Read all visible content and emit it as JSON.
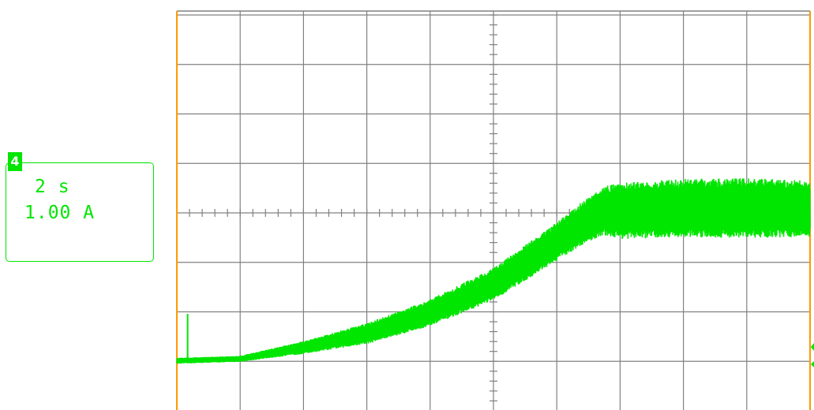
{
  "channel": {
    "number": "4",
    "timebase": "2 s",
    "scale": "1.00 A"
  },
  "colors": {
    "trace": "#00e600",
    "grid": "#808080",
    "frame": "#ff9900",
    "background": "#ffffff"
  },
  "chart_data": {
    "type": "line",
    "title": "",
    "xlabel": "",
    "ylabel": "",
    "grid": true,
    "x_unit": "s",
    "y_unit": "A",
    "x_per_div": 2,
    "y_per_div": 1,
    "xlim": [
      -10,
      10
    ],
    "ylim": [
      -4,
      4
    ],
    "series": [
      {
        "type": "envelope",
        "points": [
          {
            "x": -10.0,
            "low": -3.04,
            "high": -2.94
          },
          {
            "x": -8.0,
            "low": -3.0,
            "high": -2.9
          },
          {
            "x": -6.0,
            "low": -2.84,
            "high": -2.6
          },
          {
            "x": -4.0,
            "low": -2.64,
            "high": -2.24
          },
          {
            "x": -2.0,
            "low": -2.28,
            "high": -1.76
          },
          {
            "x": 0.0,
            "low": -1.76,
            "high": -1.12
          },
          {
            "x": 2.0,
            "low": -0.96,
            "high": -0.2
          },
          {
            "x": 3.0,
            "low": -0.56,
            "high": 0.32
          },
          {
            "x": 3.6,
            "low": -0.45,
            "high": 0.55
          },
          {
            "x": 4.0,
            "low": -0.52,
            "high": 0.6
          },
          {
            "x": 6.0,
            "low": -0.48,
            "high": 0.68
          },
          {
            "x": 8.0,
            "low": -0.5,
            "high": 0.7
          },
          {
            "x": 10.0,
            "low": -0.48,
            "high": 0.64
          }
        ]
      }
    ],
    "annotations": [
      {
        "type": "spike",
        "x": -9.66,
        "from": -2.96,
        "to": -2.04
      }
    ]
  }
}
